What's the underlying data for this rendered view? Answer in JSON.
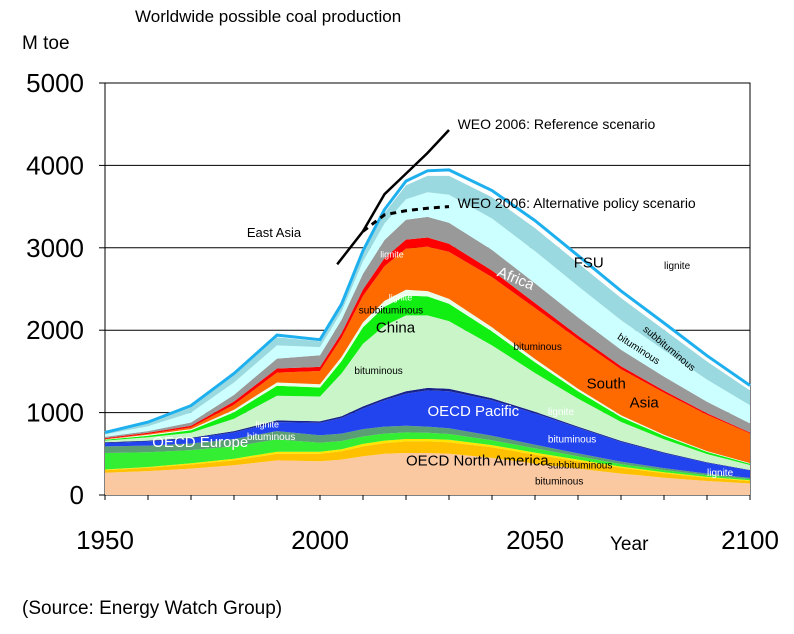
{
  "chart_data": {
    "type": "area",
    "title": "Worldwide possible coal production",
    "ylabel": "M toe",
    "xlabel": "Year",
    "source": "(Source: Energy Watch Group)",
    "xlim": [
      1950,
      2100
    ],
    "ylim": [
      0,
      5000
    ],
    "xticks": [
      "1950",
      "2000",
      "2050",
      "2100"
    ],
    "yticks": [
      "0",
      "1000",
      "2000",
      "3000",
      "4000",
      "5000"
    ],
    "x": [
      1950,
      1960,
      1970,
      1980,
      1990,
      2000,
      2005,
      2010,
      2015,
      2020,
      2025,
      2030,
      2040,
      2050,
      2060,
      2070,
      2080,
      2090,
      2100
    ],
    "series": [
      {
        "name": "OECD North America bituminous",
        "color": "#fbc9a1",
        "values": [
          270,
          290,
          320,
          360,
          420,
          410,
          430,
          470,
          500,
          510,
          510,
          500,
          450,
          380,
          320,
          260,
          210,
          170,
          140
        ]
      },
      {
        "name": "OECD North America subbituminous",
        "color": "#ffc000",
        "values": [
          30,
          40,
          50,
          60,
          80,
          90,
          100,
          120,
          130,
          140,
          140,
          140,
          130,
          110,
          90,
          70,
          55,
          40,
          30
        ]
      },
      {
        "name": "OECD North America lignite",
        "color": "#ffe600",
        "values": [
          10,
          10,
          15,
          20,
          25,
          25,
          25,
          30,
          30,
          30,
          30,
          30,
          25,
          25,
          20,
          15,
          12,
          10,
          8
        ]
      },
      {
        "name": "OECD Europe bituminous",
        "color": "#33ee33",
        "values": [
          200,
          180,
          160,
          150,
          150,
          110,
          100,
          90,
          85,
          80,
          75,
          70,
          60,
          50,
          40,
          30,
          25,
          20,
          15
        ]
      },
      {
        "name": "OECD Europe lignite",
        "color": "#5a9e74",
        "values": [
          80,
          80,
          80,
          90,
          100,
          90,
          90,
          90,
          85,
          80,
          75,
          70,
          55,
          45,
          35,
          30,
          25,
          20,
          15
        ]
      },
      {
        "name": "OECD Pacific bituminous",
        "color": "#2244ee",
        "values": [
          40,
          50,
          60,
          80,
          110,
          150,
          190,
          250,
          320,
          390,
          440,
          450,
          430,
          380,
          310,
          240,
          180,
          130,
          90
        ]
      },
      {
        "name": "OECD Pacific lignite",
        "color": "#1a238a",
        "values": [
          10,
          10,
          10,
          15,
          20,
          20,
          20,
          25,
          25,
          30,
          30,
          30,
          25,
          20,
          15,
          12,
          10,
          8,
          6
        ]
      },
      {
        "name": "China bituminous",
        "color": "#c9f5c9",
        "values": [
          20,
          40,
          60,
          150,
          300,
          300,
          520,
          760,
          880,
          920,
          880,
          820,
          640,
          470,
          340,
          230,
          160,
          100,
          60
        ]
      },
      {
        "name": "China subbituminous",
        "color": "#11ee11",
        "values": [
          10,
          20,
          30,
          80,
          120,
          110,
          150,
          200,
          230,
          240,
          230,
          210,
          170,
          130,
          90,
          60,
          40,
          25,
          15
        ]
      },
      {
        "name": "China lignite",
        "color": "#eaffea",
        "values": [
          5,
          10,
          15,
          30,
          40,
          40,
          50,
          60,
          70,
          70,
          65,
          60,
          50,
          40,
          30,
          20,
          15,
          10,
          8
        ]
      },
      {
        "name": "South Asia bituminous",
        "color": "#ff6a00",
        "values": [
          5,
          10,
          20,
          60,
          120,
          160,
          230,
          320,
          420,
          500,
          540,
          570,
          610,
          620,
          600,
          560,
          510,
          440,
          360
        ]
      },
      {
        "name": "East Asia",
        "color": "#ff0000",
        "values": [
          10,
          15,
          20,
          40,
          50,
          50,
          60,
          80,
          100,
          110,
          110,
          100,
          80,
          60,
          45,
          35,
          25,
          18,
          12
        ]
      },
      {
        "name": "Africa",
        "color": "#999999",
        "values": [
          15,
          20,
          40,
          80,
          120,
          140,
          160,
          190,
          220,
          240,
          250,
          255,
          250,
          240,
          220,
          200,
          170,
          140,
          110
        ]
      },
      {
        "name": "FSU bituminous",
        "color": "#ccffff",
        "values": [
          30,
          60,
          120,
          150,
          160,
          100,
          100,
          150,
          200,
          250,
          300,
          340,
          380,
          390,
          380,
          360,
          320,
          270,
          220
        ]
      },
      {
        "name": "FSU subbituminous",
        "color": "#9ad9df",
        "values": [
          20,
          40,
          70,
          90,
          100,
          70,
          70,
          100,
          130,
          170,
          200,
          230,
          260,
          280,
          280,
          270,
          250,
          220,
          180
        ]
      },
      {
        "name": "FSU lignite",
        "color": "#ffffff",
        "values": [
          5,
          10,
          15,
          20,
          25,
          20,
          20,
          30,
          40,
          50,
          60,
          70,
          80,
          90,
          90,
          85,
          80,
          70,
          60
        ]
      }
    ],
    "lines": [
      {
        "name": "WEO 2006: Reference scenario",
        "style": "solid",
        "x": [
          2004,
          2010,
          2015,
          2020,
          2025,
          2030
        ],
        "values": [
          2800,
          3200,
          3650,
          3900,
          4150,
          4430
        ]
      },
      {
        "name": "WEO 2006: Alternative policy scenario",
        "style": "dashed",
        "x": [
          2010,
          2015,
          2020,
          2025,
          2030
        ],
        "values": [
          3200,
          3400,
          3450,
          3480,
          3500
        ]
      }
    ],
    "annotations": [
      {
        "text": "WEO 2006: Reference scenario",
        "x": 2032,
        "y": 4440,
        "size": 14,
        "color": "#000000"
      },
      {
        "text": "WEO 2006: Alternative policy scenario",
        "x": 2032,
        "y": 3480,
        "size": 14,
        "color": "#000000"
      },
      {
        "text": "East Asia",
        "x": 1983,
        "y": 3130,
        "size": 13,
        "color": "#000000"
      },
      {
        "text": "lignite",
        "x": 2014,
        "y": 2880,
        "size": 9,
        "color": "#ffffff"
      },
      {
        "text": "Africa",
        "x": 2041,
        "y": 2660,
        "size": 15,
        "color": "#ffffff",
        "rotate": 22
      },
      {
        "text": "FSU",
        "x": 2059,
        "y": 2760,
        "size": 15,
        "color": "#000000"
      },
      {
        "text": "lignite",
        "x": 2080,
        "y": 2740,
        "size": 10,
        "color": "#000000"
      },
      {
        "text": "subbituminous",
        "x": 2075,
        "y": 2000,
        "size": 10,
        "color": "#000000",
        "rotate": 40
      },
      {
        "text": "bituminous",
        "x": 2069,
        "y": 1900,
        "size": 10,
        "color": "#000000",
        "rotate": 33
      },
      {
        "text": "lignite",
        "x": 2016,
        "y": 2360,
        "size": 9,
        "color": "#ffffff"
      },
      {
        "text": "subbituminous",
        "x": 2009,
        "y": 2200,
        "size": 10,
        "color": "#000000"
      },
      {
        "text": "China",
        "x": 2013,
        "y": 1970,
        "size": 15,
        "color": "#000000"
      },
      {
        "text": "bituminous",
        "x": 2008,
        "y": 1470,
        "size": 10,
        "color": "#000000"
      },
      {
        "text": "bituminous",
        "x": 2045,
        "y": 1760,
        "size": 10,
        "color": "#000000"
      },
      {
        "text": "South",
        "x": 2062,
        "y": 1290,
        "size": 15,
        "color": "#000000"
      },
      {
        "text": "Asia",
        "x": 2072,
        "y": 1060,
        "size": 15,
        "color": "#000000"
      },
      {
        "text": "OECD Pacific",
        "x": 2025,
        "y": 960,
        "size": 15,
        "color": "#ffffff"
      },
      {
        "text": "lignite",
        "x": 2053,
        "y": 970,
        "size": 10,
        "color": "#ffffff"
      },
      {
        "text": "bituminous",
        "x": 2053,
        "y": 640,
        "size": 10,
        "color": "#ffffff"
      },
      {
        "text": "OECD Europe",
        "x": 1961,
        "y": 580,
        "size": 15,
        "color": "#ffffff"
      },
      {
        "text": "lignite",
        "x": 1985,
        "y": 820,
        "size": 9,
        "color": "#ffffff"
      },
      {
        "text": "bituminous",
        "x": 1983,
        "y": 670,
        "size": 10,
        "color": "#ffffff"
      },
      {
        "text": "OECD North America",
        "x": 2020,
        "y": 360,
        "size": 15,
        "color": "#000000"
      },
      {
        "text": "subbituminous",
        "x": 2053,
        "y": 320,
        "size": 10,
        "color": "#000000"
      },
      {
        "text": "bituminous",
        "x": 2050,
        "y": 130,
        "size": 10,
        "color": "#000000"
      },
      {
        "text": "lignite",
        "x": 2090,
        "y": 230,
        "size": 10,
        "color": "#ffffff"
      }
    ],
    "outline_color": "#1eb0ee"
  }
}
